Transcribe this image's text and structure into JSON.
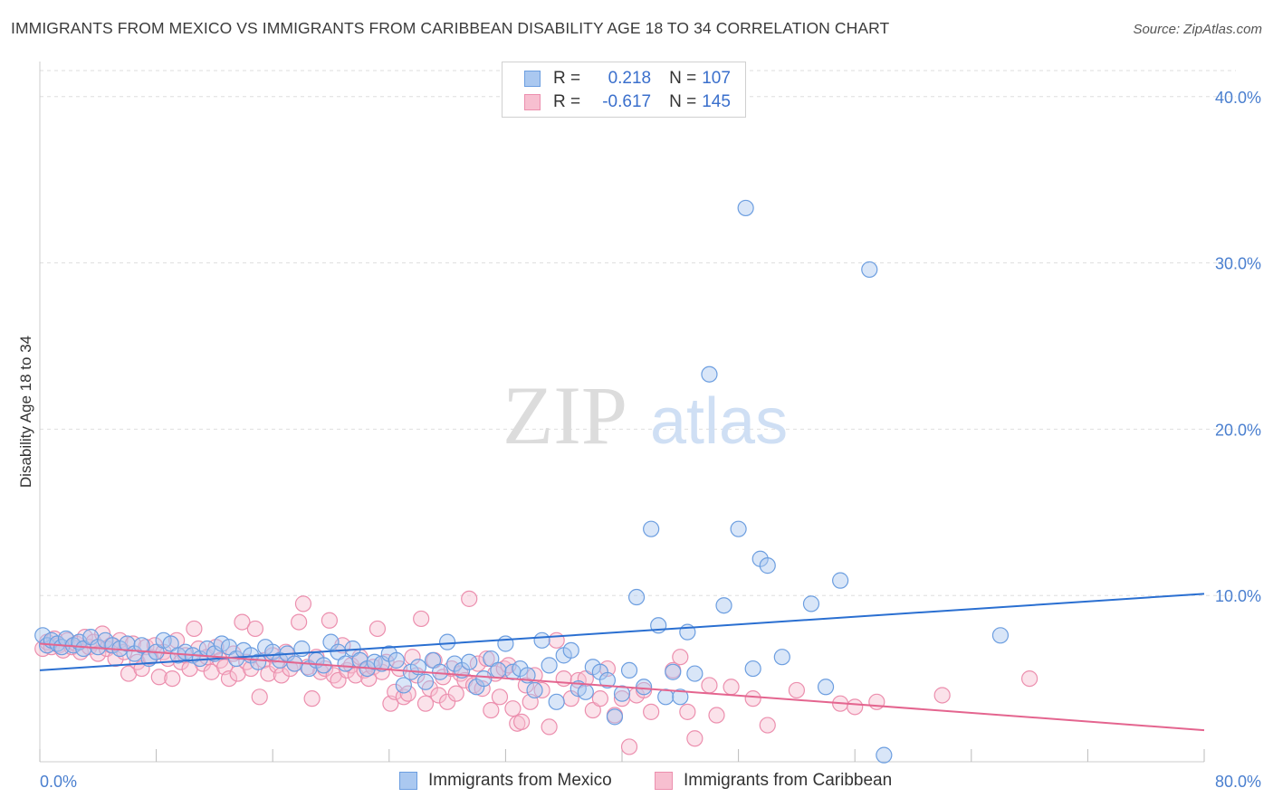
{
  "title": "IMMIGRANTS FROM MEXICO VS IMMIGRANTS FROM CARIBBEAN DISABILITY AGE 18 TO 34 CORRELATION CHART",
  "source": "Source: ZipAtlas.com",
  "watermark": {
    "zip": "ZIP",
    "atlas": "atlas"
  },
  "colors": {
    "mexico_fill": "#aac8f0",
    "mexico_stroke": "#6c9ee0",
    "mexico_line": "#2a6fd1",
    "caribbean_fill": "#f7bfd0",
    "caribbean_stroke": "#ec8fae",
    "caribbean_line": "#e4658f",
    "tick_text": "#4a7fcf"
  },
  "legend": {
    "rows": [
      {
        "r_label": "R =",
        "r_value": "0.218",
        "n_label": "N =",
        "n_value": "107"
      },
      {
        "r_label": "R =",
        "r_value": "-0.617",
        "n_label": "N =",
        "n_value": "145"
      }
    ]
  },
  "chart_data": {
    "type": "scatter",
    "title": "IMMIGRANTS FROM MEXICO VS IMMIGRANTS FROM CARIBBEAN DISABILITY AGE 18 TO 34 CORRELATION CHART",
    "xlabel": "",
    "ylabel": "Disability Age 18 to 34",
    "xlim": [
      0,
      80
    ],
    "ylim": [
      0,
      42
    ],
    "x_tick_labels": [
      "0.0%",
      "80.0%"
    ],
    "y_ticks": [
      10,
      20,
      30,
      40
    ],
    "y_tick_labels": [
      "10.0%",
      "20.0%",
      "30.0%",
      "40.0%"
    ],
    "grid": "horizontal dashed",
    "legend_position": "top-center, and bottom",
    "series": [
      {
        "name": "Immigrants from Mexico",
        "R": 0.218,
        "N": 107,
        "trend": {
          "x": [
            0,
            80
          ],
          "y": [
            5.5,
            10.1
          ]
        },
        "points": [
          [
            0.2,
            7.6
          ],
          [
            0.5,
            7.0
          ],
          [
            0.8,
            7.3
          ],
          [
            1.2,
            7.1
          ],
          [
            1.5,
            6.9
          ],
          [
            1.8,
            7.4
          ],
          [
            2.3,
            7.0
          ],
          [
            2.7,
            7.2
          ],
          [
            3.0,
            6.8
          ],
          [
            3.5,
            7.5
          ],
          [
            4.0,
            6.9
          ],
          [
            4.5,
            7.3
          ],
          [
            5.0,
            7.0
          ],
          [
            5.5,
            6.8
          ],
          [
            6.0,
            7.1
          ],
          [
            6.5,
            6.5
          ],
          [
            7.0,
            7.0
          ],
          [
            7.5,
            6.2
          ],
          [
            8.0,
            6.6
          ],
          [
            8.5,
            7.3
          ],
          [
            9.0,
            7.1
          ],
          [
            9.5,
            6.4
          ],
          [
            10.0,
            6.6
          ],
          [
            10.5,
            6.4
          ],
          [
            11.0,
            6.2
          ],
          [
            11.5,
            6.8
          ],
          [
            12.0,
            6.5
          ],
          [
            12.5,
            7.1
          ],
          [
            13.0,
            6.9
          ],
          [
            13.5,
            6.2
          ],
          [
            14.0,
            6.7
          ],
          [
            14.5,
            6.4
          ],
          [
            15.0,
            6.0
          ],
          [
            15.5,
            6.9
          ],
          [
            16.0,
            6.6
          ],
          [
            16.5,
            6.1
          ],
          [
            17.0,
            6.5
          ],
          [
            17.5,
            5.9
          ],
          [
            18.0,
            6.8
          ],
          [
            18.5,
            5.6
          ],
          [
            19.0,
            6.1
          ],
          [
            19.5,
            5.8
          ],
          [
            20.0,
            7.2
          ],
          [
            20.5,
            6.6
          ],
          [
            21.0,
            5.9
          ],
          [
            21.5,
            6.8
          ],
          [
            22.0,
            6.1
          ],
          [
            22.5,
            5.6
          ],
          [
            23.0,
            6.0
          ],
          [
            23.5,
            5.9
          ],
          [
            24.0,
            6.5
          ],
          [
            24.5,
            6.1
          ],
          [
            25.0,
            4.6
          ],
          [
            25.5,
            5.4
          ],
          [
            26.0,
            5.7
          ],
          [
            26.5,
            4.8
          ],
          [
            27.0,
            6.1
          ],
          [
            27.5,
            5.4
          ],
          [
            28.0,
            7.2
          ],
          [
            28.5,
            5.9
          ],
          [
            29.0,
            5.5
          ],
          [
            29.5,
            6.0
          ],
          [
            30.0,
            4.5
          ],
          [
            30.5,
            5.0
          ],
          [
            31.0,
            6.2
          ],
          [
            31.5,
            5.5
          ],
          [
            32.0,
            7.1
          ],
          [
            32.5,
            5.4
          ],
          [
            33.0,
            5.6
          ],
          [
            33.5,
            5.2
          ],
          [
            34.0,
            4.3
          ],
          [
            34.5,
            7.3
          ],
          [
            35.0,
            5.8
          ],
          [
            35.5,
            3.6
          ],
          [
            36.0,
            6.4
          ],
          [
            36.5,
            6.7
          ],
          [
            37.0,
            4.4
          ],
          [
            37.5,
            4.2
          ],
          [
            38.0,
            5.7
          ],
          [
            38.5,
            5.4
          ],
          [
            39.0,
            4.9
          ],
          [
            39.5,
            2.7
          ],
          [
            40.0,
            4.1
          ],
          [
            40.5,
            5.5
          ],
          [
            41.0,
            9.9
          ],
          [
            41.5,
            4.5
          ],
          [
            42.0,
            14.0
          ],
          [
            42.5,
            8.2
          ],
          [
            43.0,
            3.9
          ],
          [
            43.5,
            5.4
          ],
          [
            44.0,
            3.9
          ],
          [
            44.5,
            7.8
          ],
          [
            45.0,
            5.3
          ],
          [
            46.0,
            23.3
          ],
          [
            47.0,
            9.4
          ],
          [
            48.0,
            14.0
          ],
          [
            48.5,
            33.3
          ],
          [
            49.0,
            5.6
          ],
          [
            49.5,
            12.2
          ],
          [
            50.0,
            11.8
          ],
          [
            51.0,
            6.3
          ],
          [
            53.0,
            9.5
          ],
          [
            54.0,
            4.5
          ],
          [
            55.0,
            10.9
          ],
          [
            57.0,
            29.6
          ],
          [
            58.0,
            0.4
          ],
          [
            66.0,
            7.6
          ]
        ]
      },
      {
        "name": "Immigrants from Caribbean",
        "R": -0.617,
        "N": 145,
        "trend": {
          "x": [
            0,
            80
          ],
          "y": [
            7.1,
            1.9
          ]
        },
        "points": [
          [
            0.2,
            6.8
          ],
          [
            0.5,
            7.2
          ],
          [
            0.8,
            6.9
          ],
          [
            1.0,
            7.4
          ],
          [
            1.3,
            7.0
          ],
          [
            1.6,
            6.7
          ],
          [
            1.9,
            7.3
          ],
          [
            2.2,
            6.9
          ],
          [
            2.5,
            7.1
          ],
          [
            2.8,
            6.6
          ],
          [
            3.1,
            7.5
          ],
          [
            3.4,
            6.9
          ],
          [
            3.7,
            7.2
          ],
          [
            4.0,
            6.5
          ],
          [
            4.3,
            7.7
          ],
          [
            4.6,
            6.8
          ],
          [
            4.9,
            7.0
          ],
          [
            5.2,
            6.2
          ],
          [
            5.5,
            7.3
          ],
          [
            5.8,
            6.6
          ],
          [
            6.1,
            5.3
          ],
          [
            6.4,
            7.1
          ],
          [
            6.7,
            6.0
          ],
          [
            7.0,
            5.6
          ],
          [
            7.3,
            6.9
          ],
          [
            7.6,
            6.3
          ],
          [
            7.9,
            7.0
          ],
          [
            8.2,
            5.1
          ],
          [
            8.5,
            6.6
          ],
          [
            8.8,
            6.2
          ],
          [
            9.1,
            5.0
          ],
          [
            9.4,
            7.3
          ],
          [
            9.7,
            6.0
          ],
          [
            10.0,
            6.4
          ],
          [
            10.3,
            5.6
          ],
          [
            10.6,
            8.0
          ],
          [
            10.9,
            6.8
          ],
          [
            11.2,
            5.9
          ],
          [
            11.5,
            6.3
          ],
          [
            11.8,
            5.4
          ],
          [
            12.1,
            6.9
          ],
          [
            12.4,
            6.1
          ],
          [
            12.7,
            5.7
          ],
          [
            13.0,
            5.0
          ],
          [
            13.3,
            6.5
          ],
          [
            13.6,
            5.3
          ],
          [
            13.9,
            8.4
          ],
          [
            14.2,
            6.0
          ],
          [
            14.5,
            5.6
          ],
          [
            14.8,
            8.0
          ],
          [
            15.1,
            3.9
          ],
          [
            15.4,
            6.1
          ],
          [
            15.7,
            5.3
          ],
          [
            16.0,
            6.4
          ],
          [
            16.3,
            5.8
          ],
          [
            16.6,
            5.2
          ],
          [
            16.9,
            6.6
          ],
          [
            17.2,
            5.6
          ],
          [
            17.5,
            5.9
          ],
          [
            17.8,
            8.4
          ],
          [
            18.1,
            9.5
          ],
          [
            18.4,
            5.7
          ],
          [
            18.7,
            3.8
          ],
          [
            19.0,
            6.3
          ],
          [
            19.3,
            5.4
          ],
          [
            19.6,
            5.6
          ],
          [
            19.9,
            8.5
          ],
          [
            20.2,
            5.2
          ],
          [
            20.5,
            4.9
          ],
          [
            20.8,
            7.0
          ],
          [
            21.1,
            5.5
          ],
          [
            21.4,
            5.8
          ],
          [
            21.7,
            5.2
          ],
          [
            22.0,
            6.3
          ],
          [
            22.3,
            5.5
          ],
          [
            22.6,
            5.0
          ],
          [
            22.9,
            5.7
          ],
          [
            23.2,
            8.0
          ],
          [
            23.5,
            5.4
          ],
          [
            23.8,
            6.0
          ],
          [
            24.1,
            3.5
          ],
          [
            24.4,
            4.2
          ],
          [
            24.7,
            5.6
          ],
          [
            25.0,
            3.9
          ],
          [
            25.3,
            4.1
          ],
          [
            25.6,
            6.3
          ],
          [
            25.9,
            5.2
          ],
          [
            26.2,
            8.6
          ],
          [
            26.5,
            3.5
          ],
          [
            26.8,
            4.4
          ],
          [
            27.1,
            6.1
          ],
          [
            27.4,
            4.0
          ],
          [
            27.7,
            5.1
          ],
          [
            28.0,
            3.6
          ],
          [
            28.3,
            5.6
          ],
          [
            28.6,
            4.1
          ],
          [
            28.9,
            5.3
          ],
          [
            29.2,
            4.9
          ],
          [
            29.5,
            9.8
          ],
          [
            29.8,
            4.6
          ],
          [
            30.1,
            5.9
          ],
          [
            30.4,
            4.4
          ],
          [
            30.7,
            6.2
          ],
          [
            31.0,
            3.1
          ],
          [
            31.3,
            5.3
          ],
          [
            31.6,
            3.9
          ],
          [
            31.9,
            5.6
          ],
          [
            32.2,
            5.8
          ],
          [
            32.5,
            3.2
          ],
          [
            32.8,
            2.3
          ],
          [
            33.1,
            2.4
          ],
          [
            33.4,
            4.6
          ],
          [
            33.7,
            3.6
          ],
          [
            34.0,
            5.2
          ],
          [
            34.5,
            4.3
          ],
          [
            35.0,
            2.1
          ],
          [
            35.5,
            7.3
          ],
          [
            36.0,
            5.0
          ],
          [
            36.5,
            3.8
          ],
          [
            37.0,
            4.9
          ],
          [
            37.5,
            5.0
          ],
          [
            38.0,
            3.1
          ],
          [
            38.5,
            3.8
          ],
          [
            39.0,
            5.6
          ],
          [
            39.5,
            2.8
          ],
          [
            40.0,
            3.8
          ],
          [
            40.5,
            0.9
          ],
          [
            41.0,
            4.0
          ],
          [
            41.5,
            4.3
          ],
          [
            42.0,
            3.0
          ],
          [
            43.5,
            5.5
          ],
          [
            44.0,
            6.3
          ],
          [
            44.5,
            3.0
          ],
          [
            45.0,
            1.4
          ],
          [
            46.0,
            4.6
          ],
          [
            46.5,
            2.8
          ],
          [
            47.5,
            4.5
          ],
          [
            49.0,
            3.8
          ],
          [
            50.0,
            2.2
          ],
          [
            52.0,
            4.3
          ],
          [
            55.0,
            3.5
          ],
          [
            56.0,
            3.3
          ],
          [
            57.5,
            3.6
          ],
          [
            62.0,
            4.0
          ],
          [
            68.0,
            5.0
          ]
        ]
      }
    ]
  },
  "bottom_legend": [
    {
      "label": "Immigrants from Mexico"
    },
    {
      "label": "Immigrants from Caribbean"
    }
  ]
}
